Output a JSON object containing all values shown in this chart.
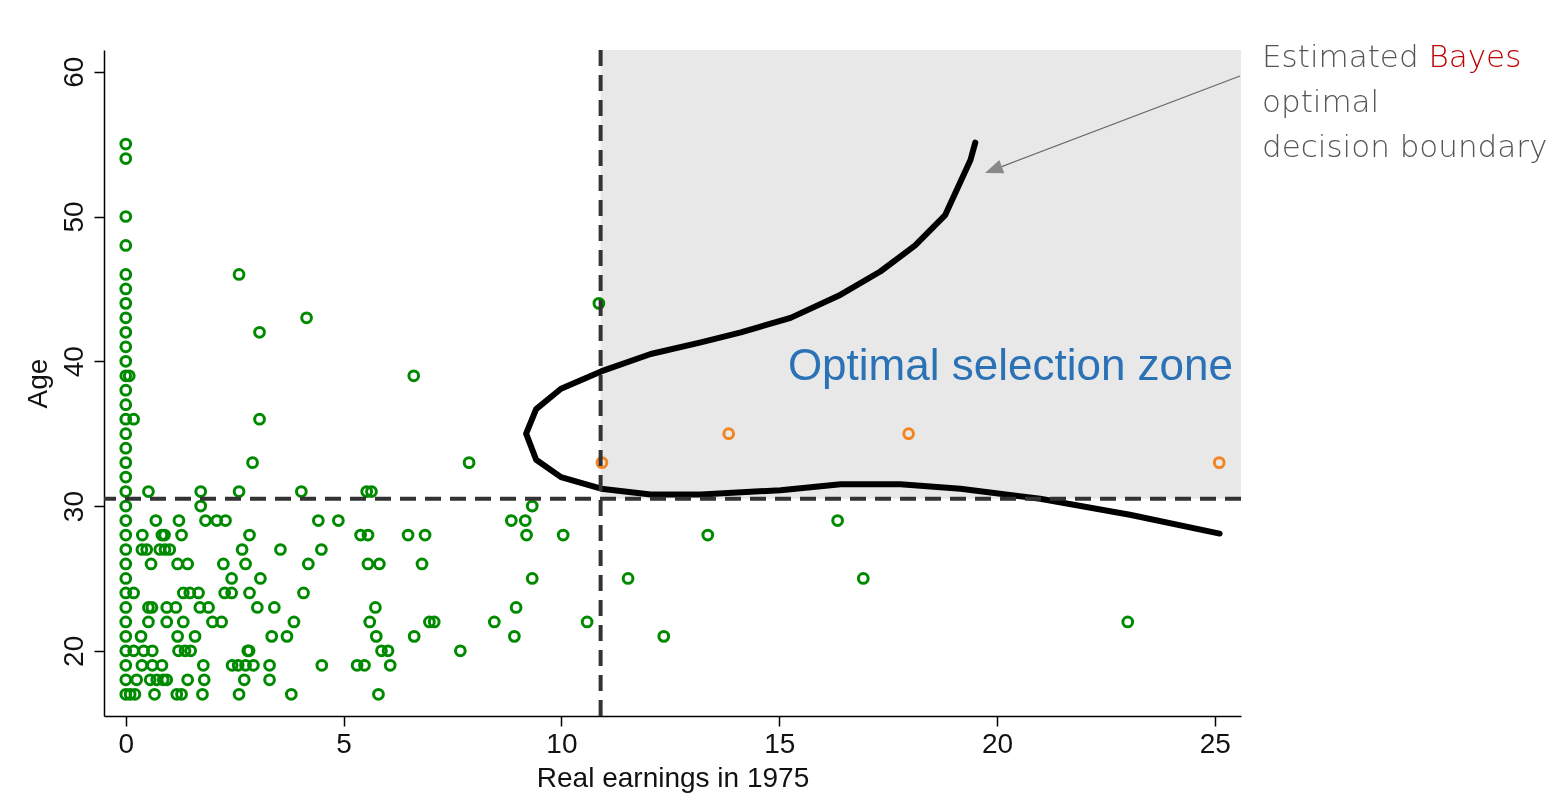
{
  "chart_data": {
    "type": "scatter",
    "xlabel": "Real earnings in 1975",
    "ylabel": "Age",
    "xlim": [
      -0.5,
      25.6
    ],
    "ylim": [
      15.5,
      61.5
    ],
    "xticks": [
      0,
      5,
      10,
      15,
      20,
      25
    ],
    "yticks": [
      20,
      30,
      40,
      50,
      60
    ],
    "grid": false,
    "marker": "circle",
    "series": [
      {
        "color": "#008a00",
        "x": [
          0,
          0,
          0,
          0,
          0,
          0,
          0,
          0,
          0,
          0,
          0,
          0,
          0,
          0,
          0,
          0,
          0,
          0,
          0,
          0,
          0,
          0,
          0,
          0,
          0,
          0,
          0,
          0,
          0,
          0,
          0,
          0,
          0,
          0,
          0.08,
          0.18,
          2.6,
          4.15,
          3.07,
          6.61,
          3.07,
          2.91,
          7.88,
          10.86,
          0.52,
          1.72,
          2.6,
          4.03,
          5.53,
          5.64,
          1.72,
          9.33,
          0.69,
          1.22,
          1.83,
          2.09,
          2.29,
          4.42,
          4.88,
          8.85,
          9.17,
          16.34,
          0.38,
          0.83,
          0.89,
          1.28,
          2.84,
          5.39,
          5.56,
          6.48,
          6.87,
          9.2,
          10.04,
          13.36,
          0.37,
          0.48,
          0.78,
          0.9,
          1.01,
          2.67,
          3.55,
          4.49,
          0.58,
          1.19,
          1.42,
          2.24,
          2.75,
          4.19,
          5.56,
          5.82,
          6.8,
          2.43,
          3.09,
          9.33,
          11.53,
          16.93,
          0.18,
          1.32,
          1.47,
          1.67,
          2.27,
          2.43,
          2.84,
          4.08,
          0.52,
          0.6,
          0.94,
          1.15,
          1.7,
          1.9,
          3.02,
          3.41,
          5.73,
          8.96,
          0.52,
          0.94,
          1.32,
          1.99,
          2.2,
          3.86,
          5.6,
          6.97,
          7.08,
          8.46,
          10.59,
          23.0,
          0.35,
          1.19,
          1.59,
          3.35,
          3.7,
          5.75,
          6.62,
          8.92,
          12.35,
          0.18,
          0.41,
          0.61,
          1.21,
          1.36,
          1.49,
          2.8,
          2.83,
          5.87,
          6.02,
          7.68,
          0.37,
          0.61,
          0.83,
          1.78,
          2.44,
          2.58,
          2.75,
          2.93,
          3.3,
          4.5,
          5.31,
          5.48,
          6.07,
          0.25,
          0.56,
          0.71,
          0.86,
          0.94,
          1.42,
          1.8,
          2.72,
          3.3,
          0.1,
          0.21,
          0.66,
          1.17,
          1.28,
          1.76,
          2.6,
          3.8,
          5.8
        ],
        "values": [
          17,
          18,
          19,
          20,
          21,
          22,
          23,
          24,
          25,
          26,
          27,
          28,
          29,
          30,
          31,
          32,
          33,
          34,
          35,
          36,
          37,
          38,
          39,
          40,
          41,
          42,
          43,
          44,
          45,
          46,
          48,
          50,
          54,
          55,
          39,
          36,
          46,
          43,
          42,
          39,
          36,
          33,
          33,
          44,
          31,
          31,
          31,
          31,
          31,
          31,
          30,
          30,
          29,
          29,
          29,
          29,
          29,
          29,
          29,
          29,
          29,
          29,
          28,
          28,
          28,
          28,
          28,
          28,
          28,
          28,
          28,
          28,
          28,
          28,
          27,
          27,
          27,
          27,
          27,
          27,
          27,
          27,
          26,
          26,
          26,
          26,
          26,
          26,
          26,
          26,
          26,
          25,
          25,
          25,
          25,
          25,
          24,
          24,
          24,
          24,
          24,
          24,
          24,
          24,
          23,
          23,
          23,
          23,
          23,
          23,
          23,
          23,
          23,
          23,
          22,
          22,
          22,
          22,
          22,
          22,
          22,
          22,
          22,
          22,
          22,
          22,
          21,
          21,
          21,
          21,
          21,
          21,
          21,
          21,
          21,
          20,
          20,
          20,
          20,
          20,
          20,
          20,
          20,
          20,
          20,
          20,
          19,
          19,
          19,
          19,
          19,
          19,
          19,
          19,
          19,
          19,
          19,
          19,
          19,
          18,
          18,
          18,
          18,
          18,
          18,
          18,
          18,
          18,
          17,
          17,
          17,
          17,
          17,
          17,
          17,
          17,
          17
        ]
      },
      {
        "color": "#f28522",
        "x": [
          10.93,
          13.84,
          17.97,
          25.1
        ],
        "values": [
          33,
          35,
          35,
          33
        ]
      },
      {
        "type": "line",
        "marker": "none",
        "color": "#000000",
        "x": [
          19.5,
          19.39,
          18.81,
          18.12,
          17.32,
          16.41,
          15.26,
          14.12,
          13.2,
          12.05,
          10.91,
          9.99,
          9.42,
          9.19,
          9.42,
          9.99,
          10.91,
          12.05,
          13.2,
          15.03,
          16.41,
          17.78,
          19.16,
          20.99,
          23.05,
          25.11
        ],
        "values": [
          55.1,
          53.9,
          50.1,
          48.0,
          46.2,
          44.6,
          43.0,
          42.0,
          41.3,
          40.5,
          39.3,
          38.1,
          36.7,
          35.0,
          33.2,
          32.0,
          31.2,
          30.8,
          30.8,
          31.1,
          31.5,
          31.5,
          31.2,
          30.5,
          29.4,
          28.1
        ]
      }
    ],
    "ref_lines": [
      {
        "axis": "x",
        "value": 10.9,
        "line_style": "dashed",
        "color": "#333333"
      },
      {
        "axis": "y",
        "value": 30.5,
        "line_style": "dashed",
        "color": "#333333"
      }
    ],
    "bands": [
      {
        "axis": "x",
        "from": 10.9,
        "to": 25.6,
        "label": "Optimal selection zone",
        "color": "#e8e8e8"
      }
    ],
    "annotations": [
      "Estimated Bayes optimal decision boundary"
    ]
  }
}
